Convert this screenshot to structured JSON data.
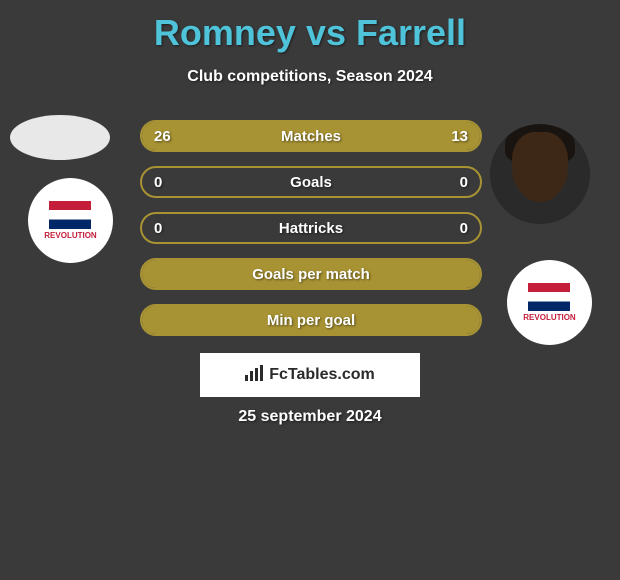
{
  "header": {
    "title": "Romney vs Farrell",
    "subtitle": "Club competitions, Season 2024",
    "title_color": "#4fc3d9"
  },
  "stats": [
    {
      "label": "Matches",
      "left_value": "26",
      "right_value": "13",
      "left_fill_pct": 65,
      "right_fill_pct": 35,
      "has_values": true
    },
    {
      "label": "Goals",
      "left_value": "0",
      "right_value": "0",
      "left_fill_pct": 0,
      "right_fill_pct": 0,
      "has_values": true
    },
    {
      "label": "Hattricks",
      "left_value": "0",
      "right_value": "0",
      "left_fill_pct": 0,
      "right_fill_pct": 0,
      "has_values": true
    },
    {
      "label": "Goals per match",
      "full_fill": true,
      "has_values": false
    },
    {
      "label": "Min per goal",
      "full_fill": true,
      "has_values": false
    }
  ],
  "watermark": {
    "text": "FcTables.com",
    "icon": "📊"
  },
  "date": "25 september 2024",
  "team_logo_text": "NEW ENGLAND REVOLUTION",
  "colors": {
    "background": "#3a3a3a",
    "bar_fill": "#a89334",
    "bar_border": "#a89334",
    "text": "#ffffff"
  }
}
